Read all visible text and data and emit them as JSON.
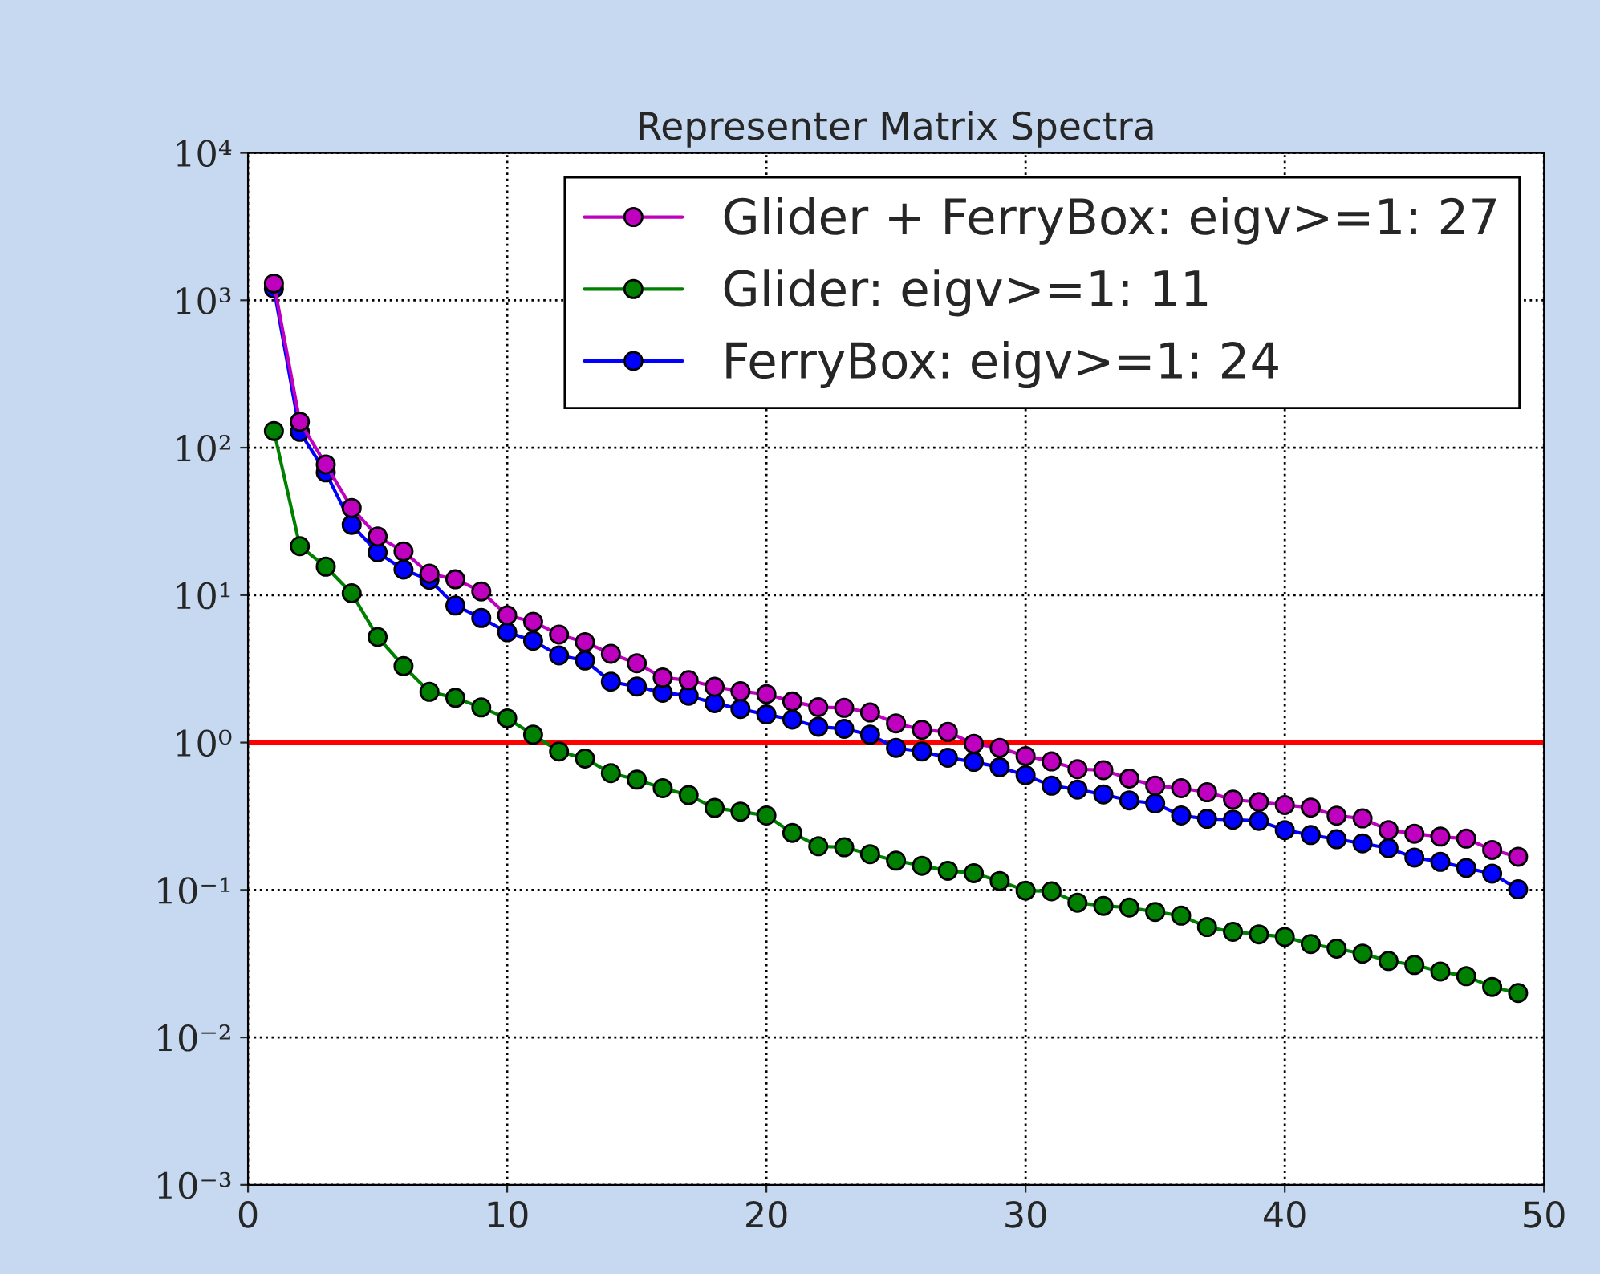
{
  "chart_data": {
    "type": "line",
    "title": "Representer Matrix Spectra",
    "x": [
      1,
      2,
      3,
      4,
      5,
      6,
      7,
      8,
      9,
      10,
      11,
      12,
      13,
      14,
      15,
      16,
      17,
      18,
      19,
      20,
      21,
      22,
      23,
      24,
      25,
      26,
      27,
      28,
      29,
      30,
      31,
      32,
      33,
      34,
      35,
      36,
      37,
      38,
      39,
      40,
      41,
      42,
      43,
      44,
      45,
      46,
      47,
      48,
      49
    ],
    "series": [
      {
        "name": "Glider + FerryBox: eigv>=1: 27",
        "color": "#bf00bf",
        "values": [
          1300,
          150,
          77,
          39,
          25,
          19.8,
          14,
          12.8,
          10.6,
          7.3,
          6.6,
          5.4,
          4.8,
          4.0,
          3.45,
          2.76,
          2.65,
          2.39,
          2.23,
          2.13,
          1.9,
          1.74,
          1.72,
          1.6,
          1.35,
          1.22,
          1.18,
          0.98,
          0.92,
          0.81,
          0.745,
          0.66,
          0.65,
          0.57,
          0.51,
          0.49,
          0.46,
          0.41,
          0.395,
          0.377,
          0.362,
          0.319,
          0.306,
          0.255,
          0.241,
          0.23,
          0.223,
          0.187,
          0.168
        ]
      },
      {
        "name": "Glider: eigv>=1: 11",
        "color": "#008000",
        "values": [
          130,
          21.5,
          15.6,
          10.3,
          5.2,
          3.3,
          2.21,
          2.01,
          1.73,
          1.46,
          1.13,
          0.87,
          0.78,
          0.62,
          0.56,
          0.49,
          0.44,
          0.36,
          0.34,
          0.32,
          0.244,
          0.198,
          0.195,
          0.175,
          0.158,
          0.146,
          0.135,
          0.13,
          0.115,
          0.099,
          0.098,
          0.082,
          0.078,
          0.076,
          0.071,
          0.067,
          0.056,
          0.052,
          0.05,
          0.048,
          0.043,
          0.04,
          0.037,
          0.033,
          0.031,
          0.028,
          0.026,
          0.022,
          0.02
        ]
      },
      {
        "name": "FerryBox: eigv>=1: 24",
        "color": "#0000ff",
        "values": [
          1200,
          128,
          68,
          30,
          19.5,
          14.9,
          12.7,
          8.5,
          7.0,
          5.6,
          4.9,
          3.9,
          3.6,
          2.59,
          2.4,
          2.18,
          2.08,
          1.85,
          1.69,
          1.55,
          1.43,
          1.28,
          1.24,
          1.13,
          0.92,
          0.87,
          0.79,
          0.74,
          0.68,
          0.6,
          0.51,
          0.48,
          0.445,
          0.405,
          0.386,
          0.32,
          0.304,
          0.3,
          0.294,
          0.255,
          0.236,
          0.221,
          0.207,
          0.192,
          0.166,
          0.155,
          0.141,
          0.129,
          0.101
        ]
      }
    ],
    "log": "y",
    "xlim": [
      0,
      50
    ],
    "xticks": [
      0,
      10,
      20,
      30,
      40,
      50
    ],
    "ylim": [
      0.001,
      10000
    ],
    "yticks": [
      {
        "value": 0.001,
        "label": "10⁻³"
      },
      {
        "value": 0.01,
        "label": "10⁻²"
      },
      {
        "value": 0.1,
        "label": "10⁻¹"
      },
      {
        "value": 1,
        "label": "10⁰"
      },
      {
        "value": 10,
        "label": "10¹"
      },
      {
        "value": 100,
        "label": "10²"
      },
      {
        "value": 1000,
        "label": "10³"
      },
      {
        "value": 10000,
        "label": "10⁴"
      }
    ],
    "ref_lines": [
      {
        "axis": "y",
        "value": 1,
        "color": "#ff0000",
        "line_style": "solid"
      }
    ],
    "grid": true,
    "legend": "top right",
    "marker": "circle",
    "line_style": "solid"
  }
}
